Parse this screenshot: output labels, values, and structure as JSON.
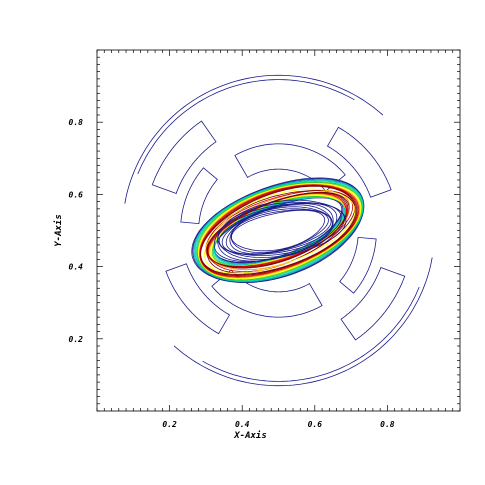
{
  "chart_data": {
    "type": "contour",
    "title": "",
    "xlabel": "X-Axis",
    "ylabel": "Y-Axis",
    "xlim": [
      0,
      1
    ],
    "ylim": [
      0,
      1
    ],
    "x_ticks": [
      0.2,
      0.4,
      0.6,
      0.8
    ],
    "y_ticks": [
      0.2,
      0.4,
      0.6,
      0.8
    ],
    "x_tick_labels": [
      "0.2",
      "0.4",
      "0.6",
      "0.8"
    ],
    "y_tick_labels": [
      "0.2",
      "0.4",
      "0.6",
      "0.8"
    ],
    "minor_ticks_per_major": 10,
    "grid": false,
    "colormap": [
      "#1a1a8c",
      "#00b3b3",
      "#00e6cc",
      "#33cc33",
      "#ffff00",
      "#ff8000",
      "#cc0000",
      "#7a0000"
    ],
    "structures": {
      "ring_center": [
        0.5,
        0.5
      ],
      "ring_tilt_deg": 20,
      "ring_semi_axes": [
        0.22,
        0.095
      ],
      "outer_arcs_radius": 0.43,
      "core_x_range": [
        0.27,
        0.75
      ],
      "core_y_range": [
        0.41,
        0.64
      ]
    }
  }
}
